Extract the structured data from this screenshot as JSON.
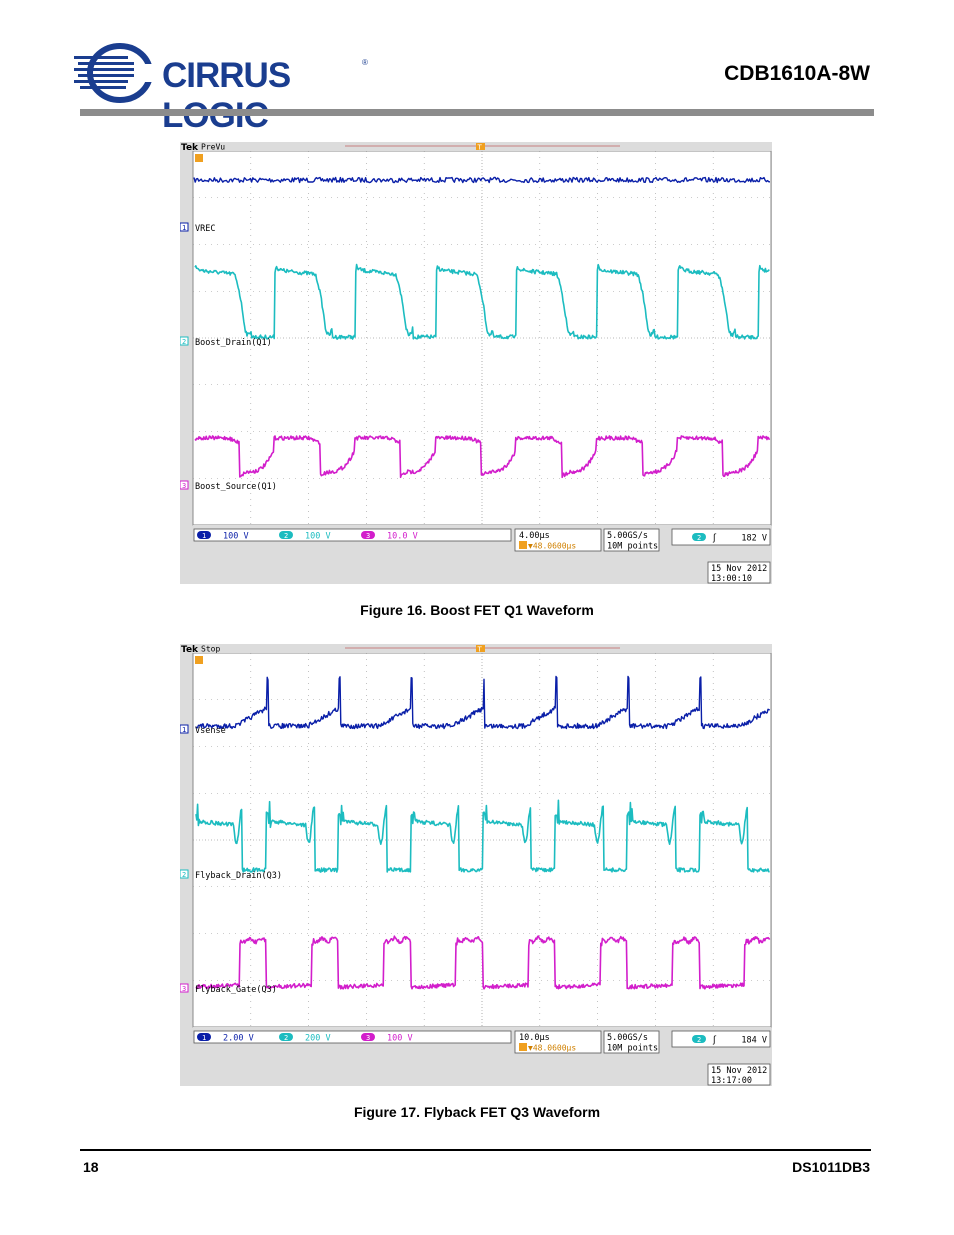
{
  "header": {
    "company": "CIRRUS LOGIC",
    "registered_mark": "®",
    "doc_title": "CDB1610A-8W"
  },
  "footer": {
    "page_number": "18",
    "doc_id": "DS1011DB3"
  },
  "colors": {
    "ch1": "#0a1fa8",
    "ch2": "#1cbcc0",
    "ch3": "#d21ecb",
    "logo": "#1a3d8f",
    "header_rule": "#8c8c8c"
  },
  "figures": [
    {
      "caption": "Figure 16.  Boost FET Q1 Waveform",
      "scope": {
        "brand": "Tek",
        "mode": "PreVu",
        "trigger_marker": "T",
        "channels": [
          {
            "num": "1",
            "label": "VREC",
            "scale": "100 V"
          },
          {
            "num": "2",
            "label": "Boost_Drain(Q1)",
            "scale": "100 V"
          },
          {
            "num": "3",
            "label": "Boost_Source(Q1)",
            "scale": "10.0 V"
          }
        ],
        "timebase": "4.00µs",
        "trigger_delay": "▼48.0600µs",
        "sample_rate": "5.00GS/s",
        "record_length": "10M points",
        "trigger_source": "2",
        "trigger_slope": "ʃ",
        "trigger_level": "182 V",
        "date": "15 Nov 2012",
        "time": "13:00:10"
      }
    },
    {
      "caption": "Figure 17.  Flyback FET Q3 Waveform",
      "scope": {
        "brand": "Tek",
        "mode": "Stop",
        "trigger_marker": "T",
        "channels": [
          {
            "num": "1",
            "label": "Vsense",
            "scale": "2.00 V"
          },
          {
            "num": "2",
            "label": "Flyback_Drain(Q3)",
            "scale": "200 V"
          },
          {
            "num": "3",
            "label": "Flyback_Gate(Q3)",
            "scale": "100 V"
          }
        ],
        "timebase": "10.0µs",
        "trigger_delay": "▼48.0600µs",
        "sample_rate": "5.00GS/s",
        "record_length": "10M points",
        "trigger_source": "2",
        "trigger_slope": "ʃ",
        "trigger_level": "184 V",
        "date": "15 Nov 2012",
        "time": "13:17:00"
      }
    }
  ]
}
